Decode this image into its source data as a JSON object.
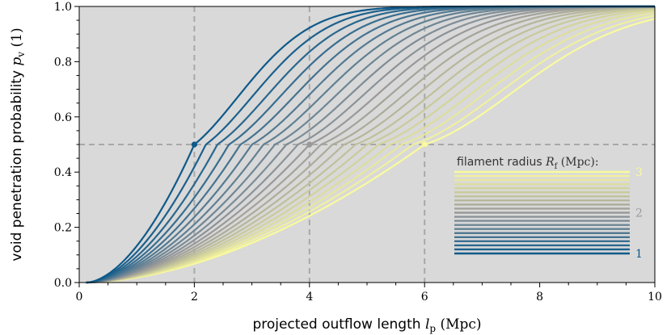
{
  "chart_data": {
    "type": "line",
    "x_label": {
      "text": "projected outflow length ",
      "symbol": "l",
      "subscript": "p",
      "unit": " (Mpc)"
    },
    "y_label": {
      "text": "void penetration probability ",
      "symbol": "p",
      "subscript": "v",
      "unit": " (1)"
    },
    "xlim": [
      0,
      10
    ],
    "ylim": [
      0,
      1
    ],
    "x_ticks": [
      0,
      2,
      4,
      6,
      8,
      10
    ],
    "x_tick_labels": [
      "0",
      "2",
      "4",
      "6",
      "8",
      "10"
    ],
    "y_ticks": [
      0,
      0.2,
      0.4,
      0.6,
      0.8,
      1.0
    ],
    "y_tick_labels": [
      "0.0",
      "0.2",
      "0.4",
      "0.6",
      "0.8",
      "1.0"
    ],
    "reference_lines": {
      "vertical": [
        2,
        4,
        6
      ],
      "horizontal": [
        0.5
      ]
    },
    "series_param": {
      "name": "filament radius",
      "symbol": "R",
      "subscript": "f",
      "unit": " (Mpc):",
      "values": [
        1.0,
        1.1,
        1.2,
        1.3,
        1.4,
        1.5,
        1.6,
        1.7,
        1.8,
        1.9,
        2.0,
        2.1,
        2.2,
        2.3,
        2.4,
        2.5,
        2.6,
        2.7,
        2.8,
        2.9,
        3.0
      ]
    },
    "legend": {
      "position": "lower-right",
      "tick_labels": [
        "1",
        "2",
        "3"
      ]
    },
    "colors": {
      "background": "#d9d9d9",
      "low": "#0e5a8a",
      "mid": "#999999",
      "high": "#fafa9e",
      "ref_line": "#a8a8a8"
    },
    "grid": false
  }
}
